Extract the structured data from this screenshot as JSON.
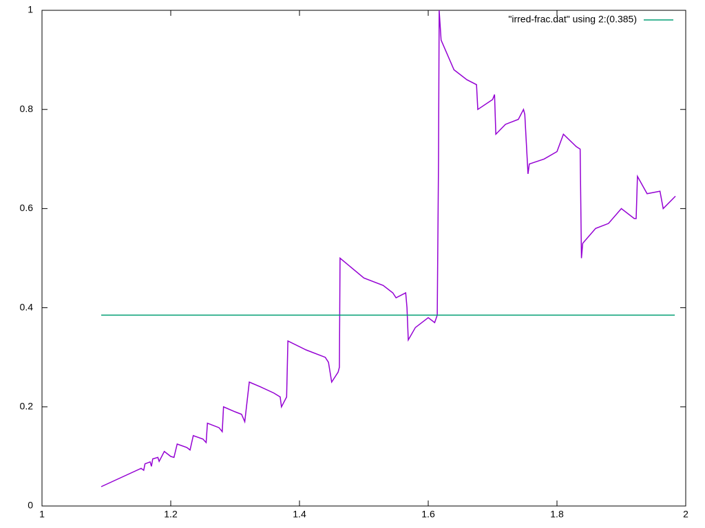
{
  "chart_data": {
    "type": "line",
    "xlim": [
      1,
      2
    ],
    "xticks": [
      1,
      1.2,
      1.4,
      1.6,
      1.8,
      2
    ],
    "ylim": [
      0,
      1
    ],
    "yticks": [
      0,
      0.2,
      0.4,
      0.6,
      0.8,
      1
    ],
    "legend": "top-right",
    "series": [
      {
        "color": "#9400d3",
        "x": [
          1.092,
          1.154,
          1.158,
          1.16,
          1.168,
          1.17,
          1.172,
          1.18,
          1.182,
          1.19,
          1.2,
          1.205,
          1.21,
          1.225,
          1.23,
          1.235,
          1.25,
          1.255,
          1.257,
          1.275,
          1.28,
          1.282,
          1.3,
          1.31,
          1.315,
          1.322,
          1.34,
          1.36,
          1.37,
          1.372,
          1.38,
          1.382,
          1.41,
          1.44,
          1.445,
          1.45,
          1.46,
          1.462,
          1.463,
          1.5,
          1.53,
          1.545,
          1.55,
          1.565,
          1.567,
          1.569,
          1.58,
          1.6,
          1.61,
          1.614,
          1.616,
          1.617,
          1.62,
          1.64,
          1.66,
          1.675,
          1.677,
          1.7,
          1.703,
          1.705,
          1.72,
          1.74,
          1.748,
          1.75,
          1.755,
          1.757,
          1.78,
          1.8,
          1.81,
          1.83,
          1.836,
          1.838,
          1.84,
          1.86,
          1.88,
          1.9,
          1.92,
          1.923,
          1.925,
          1.94,
          1.96,
          1.965,
          1.984
        ],
        "values": [
          0.039,
          0.076,
          0.072,
          0.085,
          0.089,
          0.08,
          0.095,
          0.098,
          0.09,
          0.11,
          0.1,
          0.098,
          0.125,
          0.118,
          0.113,
          0.142,
          0.135,
          0.128,
          0.167,
          0.158,
          0.15,
          0.2,
          0.19,
          0.185,
          0.17,
          0.25,
          0.24,
          0.228,
          0.22,
          0.2,
          0.22,
          0.333,
          0.315,
          0.3,
          0.29,
          0.25,
          0.27,
          0.28,
          0.5,
          0.46,
          0.445,
          0.43,
          0.42,
          0.43,
          0.4,
          0.335,
          0.36,
          0.38,
          0.37,
          0.385,
          0.7,
          1.0,
          0.94,
          0.88,
          0.86,
          0.85,
          0.8,
          0.82,
          0.83,
          0.75,
          0.77,
          0.78,
          0.8,
          0.79,
          0.67,
          0.69,
          0.7,
          0.715,
          0.75,
          0.725,
          0.72,
          0.5,
          0.53,
          0.56,
          0.57,
          0.6,
          0.58,
          0.58,
          0.665,
          0.63,
          0.635,
          0.6,
          0.625
        ]
      },
      {
        "name": "\"irred-frac.dat\" using 2:(0.385)",
        "color": "#009e73",
        "x": [
          1.092,
          1.983
        ],
        "values": [
          0.385,
          0.385
        ]
      }
    ]
  }
}
